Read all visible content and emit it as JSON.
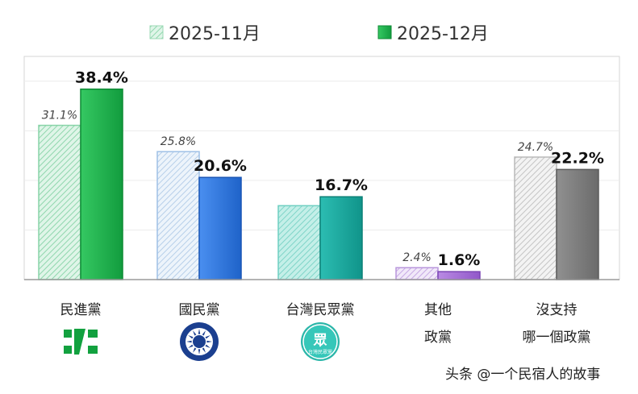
{
  "chart_data": {
    "type": "bar",
    "series": [
      {
        "name": "2025-11月",
        "values": [
          31.1,
          25.8,
          14.9,
          2.4,
          24.7
        ]
      },
      {
        "name": "2025-12月",
        "values": [
          38.4,
          20.6,
          16.7,
          1.6,
          22.2
        ]
      }
    ],
    "categories": [
      [
        "民進黨"
      ],
      [
        "國民黨"
      ],
      [
        "台灣民眾黨"
      ],
      [
        "其他",
        "政黨"
      ],
      [
        "沒支持",
        "哪一個政黨"
      ]
    ],
    "value_labels": {
      "2025-11月": [
        "31.1%",
        "25.8%",
        "",
        "2.4%",
        "24.7%"
      ],
      "2025-12月": [
        "38.4%",
        "20.6%",
        "16.7%",
        "1.6%",
        "22.2%"
      ]
    },
    "ylim": [
      0,
      45
    ],
    "grid": true,
    "legend": "top",
    "colors": {
      "2025-11月": [
        "#c9efdc",
        "#d9e8f7",
        "#9fe0d6",
        "#e4d4f2",
        "#e8e8e8"
      ],
      "2025-12月": [
        "#1bb34a",
        "#2e78e0",
        "#17a89e",
        "#a673d8",
        "#808080"
      ]
    }
  },
  "logos": [
    {
      "category": "民進黨",
      "icon": "dpp-logo-icon"
    },
    {
      "category": "國民黨",
      "icon": "kmt-logo-icon"
    },
    {
      "category": "台灣民眾黨",
      "icon": "tpp-logo-icon",
      "text": "眾",
      "subtext": "台灣民眾黨"
    }
  ],
  "watermark": "头条 @一个民宿人的故事"
}
